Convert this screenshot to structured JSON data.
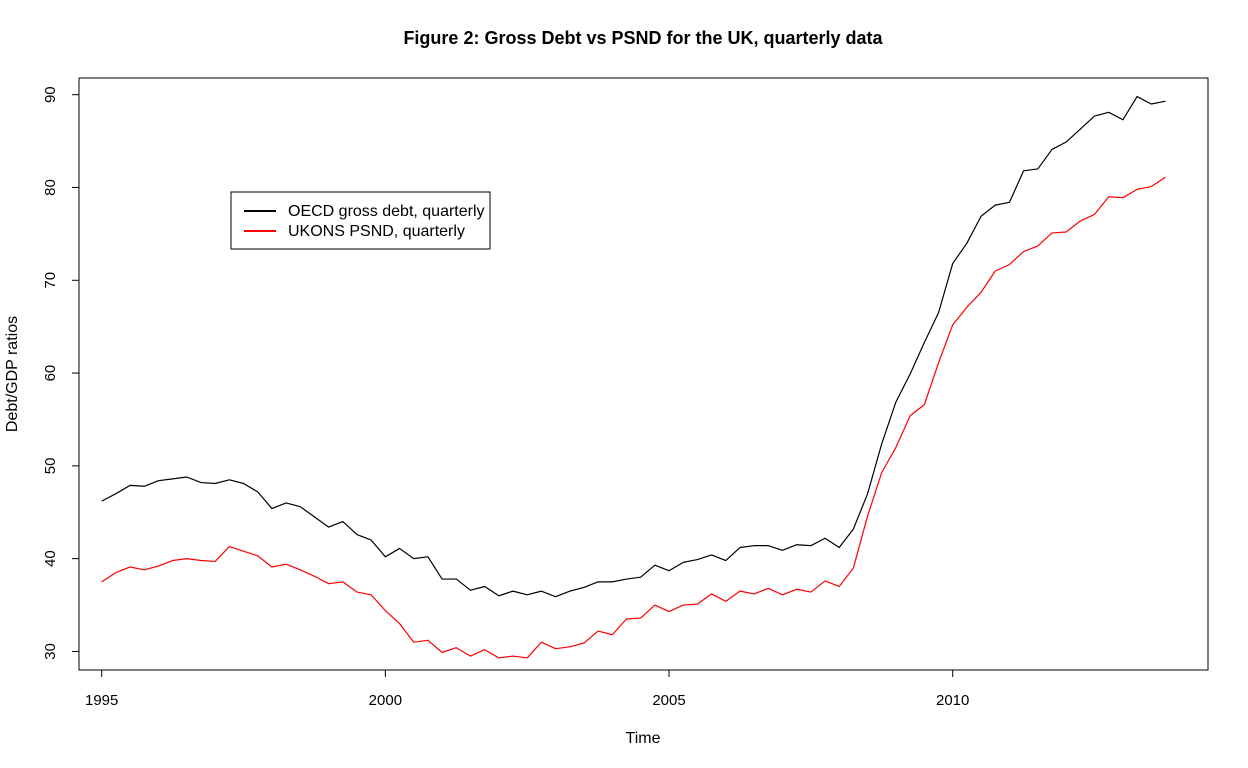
{
  "chart_data": {
    "type": "line",
    "title": "Figure 2: Gross Debt vs PSND for the UK, quarterly data",
    "xlabel": "Time",
    "ylabel": "Debt/GDP ratios",
    "xlim": [
      1994.6,
      2014.5
    ],
    "ylim": [
      28,
      91.8
    ],
    "x_ticks": [
      1995,
      2000,
      2005,
      2010
    ],
    "y_ticks": [
      30,
      40,
      50,
      60,
      70,
      80,
      90
    ],
    "x_start": 1995,
    "x_step": 0.25,
    "grid": false,
    "legend_position": "top-left",
    "series": [
      {
        "name": "OECD gross debt, quarterly",
        "color": "#000000",
        "values": [
          46.2,
          47.0,
          47.9,
          47.8,
          48.4,
          48.6,
          48.8,
          48.2,
          48.1,
          48.5,
          48.1,
          47.2,
          45.4,
          46.0,
          45.6,
          44.5,
          43.4,
          44.0,
          42.6,
          42.0,
          40.2,
          41.1,
          40.0,
          40.2,
          37.8,
          37.8,
          36.6,
          37.0,
          36.0,
          36.5,
          36.1,
          36.5,
          35.9,
          36.5,
          36.9,
          37.5,
          37.5,
          37.8,
          38.0,
          39.3,
          38.7,
          39.6,
          39.9,
          40.4,
          39.8,
          41.2,
          41.4,
          41.4,
          40.9,
          41.5,
          41.4,
          42.2,
          41.2,
          43.2,
          47.0,
          52.4,
          56.9,
          59.9,
          63.3,
          66.5,
          71.8,
          74.0,
          76.9,
          78.1,
          78.4,
          81.8,
          82.0,
          84.1,
          84.9,
          86.3,
          87.7,
          88.1,
          87.3,
          89.8,
          89.0,
          89.3
        ]
      },
      {
        "name": "UKONS PSND, quarterly",
        "color": "#ff0000",
        "values": [
          37.5,
          38.5,
          39.1,
          38.8,
          39.2,
          39.8,
          40.0,
          39.8,
          39.7,
          41.3,
          40.8,
          40.3,
          39.1,
          39.4,
          38.8,
          38.1,
          37.3,
          37.5,
          36.4,
          36.1,
          34.4,
          33.0,
          31.0,
          31.2,
          29.9,
          30.4,
          29.5,
          30.2,
          29.3,
          29.5,
          29.3,
          31.0,
          30.3,
          30.5,
          30.9,
          32.2,
          31.8,
          33.5,
          33.6,
          35.0,
          34.3,
          35.0,
          35.1,
          36.2,
          35.4,
          36.5,
          36.2,
          36.8,
          36.1,
          36.7,
          36.4,
          37.6,
          37.0,
          39.0,
          44.6,
          49.3,
          52.0,
          55.4,
          56.6,
          61.1,
          65.2,
          67.1,
          68.7,
          71.0,
          71.7,
          73.1,
          73.7,
          75.1,
          75.2,
          76.4,
          77.1,
          79.0,
          78.9,
          79.8,
          80.1,
          81.1
        ]
      }
    ]
  }
}
